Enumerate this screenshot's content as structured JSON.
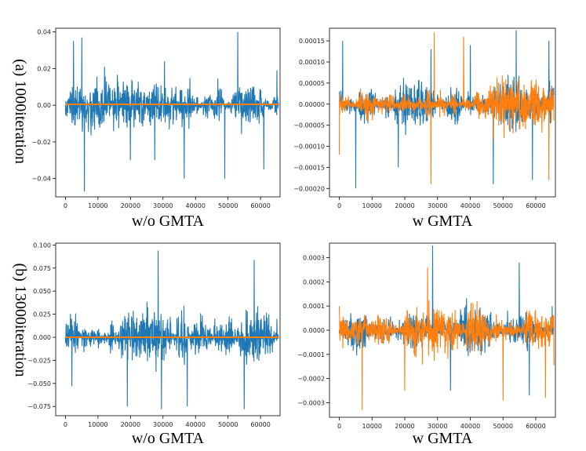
{
  "colors": {
    "series_blue": "#1f77b4",
    "series_orange": "#ff7f0e"
  },
  "row_labels": [
    "(a) 1000iteration",
    "(b) 13000iteration"
  ],
  "chart_data": [
    {
      "id": "a-left",
      "type": "line",
      "xlabel": "w/o GMTA",
      "xlim": [
        -3000,
        66000
      ],
      "ylim": [
        -0.05,
        0.042
      ],
      "xticks": [
        0,
        10000,
        20000,
        30000,
        40000,
        50000,
        60000
      ],
      "yticks": [
        0.04,
        0.02,
        0.0,
        -0.02,
        -0.04
      ],
      "ytick_labels": [
        "0.04",
        "0.02",
        "0.00",
        "−0.02",
        "−0.04"
      ],
      "series": [
        {
          "name": "blue",
          "color": "#1f77b4",
          "kind": "noise",
          "x_range": [
            0,
            65536
          ],
          "mean": 0.0,
          "points": [
            [
              0,
              0.0
            ],
            [
              2500,
              0.035
            ],
            [
              5000,
              0.037
            ],
            [
              5800,
              -0.047
            ],
            [
              12000,
              0.021
            ],
            [
              20000,
              -0.03
            ],
            [
              27500,
              -0.03
            ],
            [
              30500,
              0.024
            ],
            [
              36500,
              -0.04
            ],
            [
              49000,
              -0.04
            ],
            [
              53000,
              0.04
            ],
            [
              61000,
              -0.035
            ],
            [
              65000,
              0.019
            ]
          ]
        },
        {
          "name": "orange",
          "color": "#ff7f0e",
          "kind": "flat",
          "x_range": [
            0,
            65536
          ],
          "values": [
            0.0005
          ]
        }
      ]
    },
    {
      "id": "a-right",
      "type": "line",
      "xlabel": "w GMTA",
      "xlim": [
        -3000,
        66000
      ],
      "ylim": [
        -0.00022,
        0.00018
      ],
      "xticks": [
        0,
        10000,
        20000,
        30000,
        40000,
        50000,
        60000
      ],
      "yticks": [
        0.00015,
        0.0001,
        5e-05,
        0.0,
        -5e-05,
        -0.0001,
        -0.00015,
        -0.0002
      ],
      "ytick_labels": [
        "0.00015",
        "0.00010",
        "0.00005",
        "0.00000",
        "−0.00005",
        "−0.00010",
        "−0.00015",
        "−0.00020"
      ],
      "series": [
        {
          "name": "blue",
          "color": "#1f77b4",
          "kind": "noise",
          "x_range": [
            0,
            65536
          ],
          "mean": 0.0,
          "points": [
            [
              0,
              3e-05
            ],
            [
              1000,
              0.00015
            ],
            [
              5000,
              -0.0002
            ],
            [
              18000,
              -0.00015
            ],
            [
              28000,
              0.00013
            ],
            [
              40000,
              0.00014
            ],
            [
              47000,
              -0.00019
            ],
            [
              54000,
              0.000175
            ],
            [
              59000,
              -0.00018
            ],
            [
              64000,
              0.00015
            ]
          ]
        },
        {
          "name": "orange",
          "color": "#ff7f0e",
          "kind": "noise",
          "x_range": [
            0,
            65536
          ],
          "mean": 0.0,
          "points": [
            [
              0,
              -0.00012
            ],
            [
              28000,
              -0.00019
            ],
            [
              29000,
              0.00017
            ],
            [
              38000,
              0.00016
            ],
            [
              64000,
              -0.00018
            ],
            [
              65000,
              0.0
            ]
          ]
        }
      ]
    },
    {
      "id": "b-left",
      "type": "line",
      "xlabel": "w/o GMTA",
      "xlim": [
        -3000,
        66000
      ],
      "ylim": [
        -0.085,
        0.102
      ],
      "xticks": [
        0,
        10000,
        20000,
        30000,
        40000,
        50000,
        60000
      ],
      "yticks": [
        0.1,
        0.075,
        0.05,
        0.025,
        0.0,
        -0.025,
        -0.05,
        -0.075
      ],
      "ytick_labels": [
        "0.100",
        "0.075",
        "0.050",
        "0.025",
        "0.000",
        "−0.025",
        "−0.050",
        "−0.075"
      ],
      "series": [
        {
          "name": "blue",
          "color": "#1f77b4",
          "kind": "noise",
          "x_range": [
            0,
            65536
          ],
          "mean": 0.0,
          "points": [
            [
              0,
              0.0
            ],
            [
              2000,
              -0.053
            ],
            [
              19000,
              -0.075
            ],
            [
              28500,
              0.094
            ],
            [
              29500,
              -0.078
            ],
            [
              37500,
              -0.075
            ],
            [
              55000,
              -0.078
            ],
            [
              58000,
              0.084
            ],
            [
              65000,
              0.02
            ]
          ]
        },
        {
          "name": "orange",
          "color": "#ff7f0e",
          "kind": "flat",
          "x_range": [
            0,
            65536
          ],
          "values": [
            0.0
          ]
        }
      ]
    },
    {
      "id": "b-right",
      "type": "line",
      "xlabel": "w GMTA",
      "xlim": [
        -3000,
        66000
      ],
      "ylim": [
        -0.00036,
        0.00036
      ],
      "xticks": [
        0,
        10000,
        20000,
        30000,
        40000,
        50000,
        60000
      ],
      "yticks": [
        0.0003,
        0.0002,
        0.0001,
        0.0,
        -0.0001,
        -0.0002,
        -0.0003
      ],
      "ytick_labels": [
        "0.0003",
        "0.0002",
        "0.0001",
        "0.0000",
        "−0.0001",
        "−0.0002",
        "−0.0003"
      ],
      "series": [
        {
          "name": "blue",
          "color": "#1f77b4",
          "kind": "noise",
          "x_range": [
            0,
            65536
          ],
          "mean": 0.0,
          "points": [
            [
              0,
              0.0
            ],
            [
              28500,
              0.00035
            ],
            [
              34000,
              -0.00025
            ],
            [
              55000,
              0.00028
            ],
            [
              58000,
              -0.00027
            ],
            [
              65000,
              0.0001
            ]
          ]
        },
        {
          "name": "orange",
          "color": "#ff7f0e",
          "kind": "noise",
          "x_range": [
            0,
            65536
          ],
          "mean": 0.0,
          "points": [
            [
              0,
              0.0001
            ],
            [
              7000,
              -0.00033
            ],
            [
              20000,
              -0.00025
            ],
            [
              27000,
              0.00026
            ],
            [
              50000,
              -0.00029
            ],
            [
              63000,
              -0.00028
            ],
            [
              65000,
              5e-05
            ]
          ]
        }
      ]
    }
  ]
}
